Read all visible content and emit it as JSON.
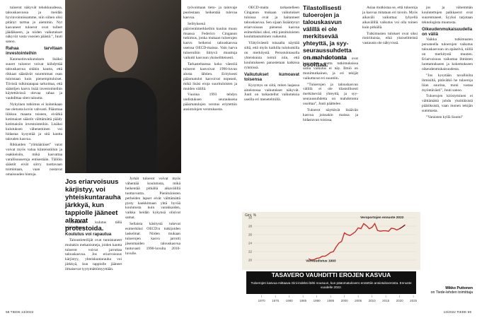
{
  "left_page": {
    "col1": [
      {
        "text": "tuloerot näkyvät tehokkuudessa, talouskasvussa ja meidän hyvinvoinnissamme, niin siihen olisi pitänyt tarttua jo aiemmin. Nyt kasvaneet tuloerot ovat tulleet jäädäkseen, ja niiden vaikutukset näkyvät vasta vuosien päästä.”, Juuti sanoo."
      },
      {
        "heading": "Rahaa tarvitaan investointeihin"
      },
      {
        "text": "Kannustinvaikutuksen lisäksi suuret tuloerot voivat kiihdyttää talouskasvua sitäkin kautta, että rikkaat säästävät suuremman osan tuloistaan kuin pienempituloiset. Tiivistä tulkintatapaa tarkoittaa, että säästöjen kasvu lisää investointeihin käytettävissä olevaa rahaa ja vauhdittaa siten taloutta."
      },
      {
        "text": "Nykyinen tutkimus ei kuitenkaan tue oletusta kovin vahvasti. Pääomaa liikkuu maasta toiseen, eivätkä kotimaiset säästöt välttämättä päädy kotimaisiin investointeihin. Lisäksi kulutuksen väheneminen voi hidastaa kysyntää ja sitä kautta talouden kasvua."
      },
      {
        "text": "Rikkaiden ”ylimääräiset” varat voivat myös valua kiinteistöihin ja osakkeisiin, mikä kasvattaa varallisuuseroja entisestään. Tällöin säästöt eivät siirry tuottavaan toimintaan, vaan nostavat omaisuuden hintoja."
      }
    ],
    "quote": "Jos eriarvoisuus kärjistyy, voi yhteiskuntarauha järkkyä, kun tappiolle jääneet alkavat protestoida.",
    "col2": [
      {
        "text": "yksittäinen kulutus tällä tuloluokassa."
      },
      {
        "heading": "Koulutus voi rapautua"
      },
      {
        "text": "Taloustieteilijät ovat tunnistaneet muitakin mekanismeja, joiden kautta tuloerot voivat jarruttaa talouskasvua. Jos eriarvoisuus kärjistyy, yhteiskuntarauha voi järkkyä, kun tappiolle jääneet ilmaisevat tyytymättömyyttään."
      }
    ],
    "col3": [
      {
        "text": "Jyrkät tuloerot voivat myös vähentää koulutusta, mikä heikentää pitkällä aikavälillä tuottavuutta. Pienituloisten perheiden lapset eivät välttämättä pysty hankkimaan yhtä hyvää koulutusta kuin varakkaiden, vaikka heidän kykynsä olisivat samat."
      },
      {
        "text": "Sellaista käsitystä tukevat esimerkiksi OECD:n tutkijoiden laskelmat. Niiden mukaan tuloerojen kasvu jarrutti jäsenmaiden talouskasvua tuntuvasti 1990-luvulta 2010-luvulle."
      }
    ],
    "col4": [
      {
        "text": "työvoimaan tieto- ja taitovaje puolestaan heikentää tulevaa kasvua."
      },
      {
        "text": "Selityksenä päävientimerkkeihin kuuluu muun muassa Federico Cinganon tutkimus, jonka mukaan tuloerojen kasvu heikensi talouskasvua useissa OECD-maissa. Vain harva tuloeroihin liittyvä muuttuja vaikutti kasvuun yksiselitteisesti."
      },
      {
        "text": "Tarkasteltaessa koko väestöä tuloerot kasvoivat 1990-luvun alusta lähtien. Erityisesti pääomatulot kasvoivat nopeasti, mikä lisäsi eroja suurituloisten ja muiden välillä."
      },
      {
        "text": "Vuonna 1993 tehdyn uudistuksen seurauksena pääomatulojen verotus eriytettiin ansiotulojen verotuksesta."
      }
    ],
    "footer": "58 TIEDE 13/2022"
  },
  "right_page": {
    "col1": [
      {
        "text": "OECD-maita tarkastelleen Cinganon mukaan vaikutukset tuloissa ovat ja haitanneet talouskasvua. Sen sijaan lisääntynyt eriarvoisuus pienensi kasvua esimerkiksi siksi, että pienituloisten kouluttautuminen vaikeutui."
      },
      {
        "text": "Ylätyöväestö toisaalta näyttää siltä, että myös kaikilla tuloluokilla on merkitystä. Perustulotasolla yhteiskunta toimii niin, että koulutukseen panostetaan kaikissa ryhmissä."
      },
      {
        "heading": "Vaikutukset kumoavat toisensa"
      },
      {
        "text": "Kysymys on siitä, miten laajassa aineistossa vaikutukset näkyvät. Juuti on tarkastellut vaikutuksia useilla eri menetelmillä."
      }
    ],
    "heading": "Tilastollisesti tuloerojen ja talouskasvun välillä ei ole merkitsevää yhteyttä, ja syy-seuraussuhdetta on mahdotonta osoittaa.",
    "col2": [
      {
        "text": "näyttää, että säästöt ovat kasvaneet, mutta tutkimuksissa sama vaikutus ei näy. Ilmiö on monimutkainen, ja eri tekijät vaikuttavat eri suuntiin."
      },
      {
        "text": "”Tuloerojen ja talouskasvun välillä ei ole tilastollisesti merkitsevää yhteyttä, ja syy-seuraussuhdetta on mahdotonta osoittaa”, Juuti päättelee."
      },
      {
        "text": "Tuloerot näyttävät lisäävän kasvua joissakin maissa ja hidastavan toisissa."
      }
    ],
    "col3": [
      {
        "text": "Asiaa mutkistaa se, että tuloeroja ja kasvua mitataan eri tavoin. Myös aikaväli vaikuttaa: lyhyellä aikavälillä vaikutus voi olla toinen kuin pitkällä."
      },
      {
        "text": "Tutkimusten tulokset ovat siksi ristiriitaisia, eikä yksiselitteistä vastausta ole näkyvissä."
      }
    ],
    "col4": [
      {
        "text": "jos ja vähemmän koulutettujen palkkaerot ovat suurentuneet. Syyksi tarjotaan teknologista muutosta."
      },
      {
        "heading": "Oikeudenmukaisuudella on väliä"
      },
      {
        "text": "Vaikka tutkimusten perusteella tuloerojen vaikutus talouskasvuun on epäselvä, niillä on merkitystä muuten. Eriarvoisuus vaikuttaa ihmisten luottamukseen ja kokemukseen oikeudenmukaisuudesta."
      },
      {
        "text": "”Jos kysytään tavallisilta ihmisiltä, pitävätkö he tuloeroja liian suurina, moni vastaa myöntävästi”, Juuti sanoo."
      },
      {
        "text": "Tuloerojen kiristyminen ei välttämättä johdu yksittäisistä päätöksistä, vaan monen tekijän summasta."
      },
      {
        "text": "”Varaisten kyllä Suomi”"
      }
    ],
    "signature": "Mikko Puttonen",
    "signature_role": "on Tiede-lehden toimittaja",
    "footer": "13/2022 TIEDE 59"
  },
  "chart_data": {
    "type": "line",
    "title": "TASAVERO VAUHDITTI EROJEN KASVUA",
    "subtitle": "Tuloerojen kasvua mittaava Gini-indeksi lähti nousuun, kun pääomatulovero erotettiin ansiotuloverosta. Ennuste vuodelle 2022.",
    "y_label": "Gini, %",
    "annotations": [
      "Verouudistus 1993",
      "Veroportojen ennuste 2022"
    ],
    "series": [
      {
        "name": "Gini",
        "color": "#c4302b",
        "x": [
          1987,
          1988,
          1989,
          1990,
          1991,
          1992,
          1993,
          1994,
          1995,
          1996,
          1997,
          1998,
          1999,
          2000,
          2001,
          2002,
          2003,
          2004,
          2005,
          2006,
          2007,
          2008,
          2009,
          2010,
          2011,
          2012,
          2013,
          2014,
          2015,
          2016,
          2017,
          2018,
          2019,
          2020
        ],
        "values": [
          20.3,
          20.0,
          20.1,
          20.4,
          20.5,
          20.9,
          20.9,
          21.3,
          21.8,
          22.0,
          23.1,
          24.0,
          24.4,
          26.4,
          26.0,
          25.8,
          26.2,
          26.7,
          27.6,
          27.4,
          28.6,
          28.1,
          27.4,
          27.7,
          28.6,
          27.0,
          26.8,
          26.9,
          26.9,
          26.8,
          27.5,
          27.4,
          27.1,
          27.4
        ]
      },
      {
        "name": "Ennuste",
        "color": "#7a1410",
        "x": [
          2020,
          2021,
          2022
        ],
        "values": [
          27.4,
          27.8,
          28.3
        ]
      }
    ],
    "xlim": [
      1967,
      2026
    ],
    "xticks": [
      1970,
      1975,
      1980,
      1985,
      1990,
      1995,
      2000,
      2005,
      2010,
      2015,
      2020,
      2025
    ],
    "ylim": [
      18,
      30
    ],
    "yticks": [
      20,
      22,
      24,
      26,
      28,
      30
    ]
  }
}
